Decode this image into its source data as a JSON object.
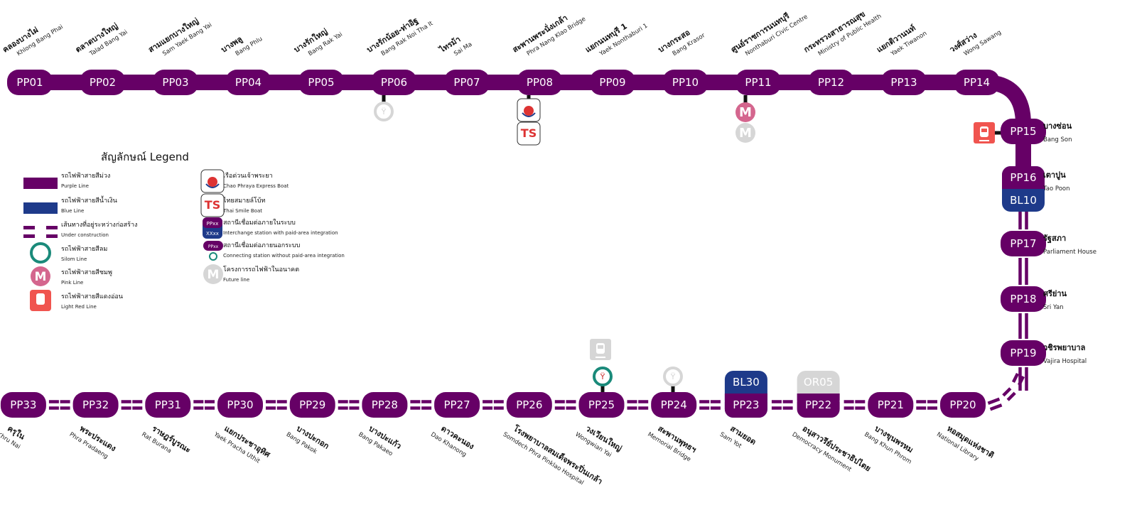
{
  "colors": {
    "purple": "#660066",
    "blue": "#1e3a8a",
    "pink": "#d4668e",
    "silom": "#1a8a7a",
    "light_red": "#f0544f",
    "future": "#d6d6d6",
    "link": "#111111"
  },
  "stations": [
    {
      "code": "PP01",
      "th": "คลองบางไผ่",
      "en": "Khlong Bang Phai"
    },
    {
      "code": "PP02",
      "th": "ตลาดบางใหญ่",
      "en": "Talad Bang Yai"
    },
    {
      "code": "PP03",
      "th": "สามแยกบางใหญ่",
      "en": "Sam Yaek Bang Yai"
    },
    {
      "code": "PP04",
      "th": "บางพลู",
      "en": "Bang Phlu"
    },
    {
      "code": "PP05",
      "th": "บางรักใหญ่",
      "en": "Bang Rak Yai"
    },
    {
      "code": "PP06",
      "th": "บางรักน้อย-ท่าอิฐ",
      "en": "Bang Rak Noi Tha It",
      "connections": [
        "silom-future"
      ]
    },
    {
      "code": "PP07",
      "th": "ไทรม้า",
      "en": "Sai Ma"
    },
    {
      "code": "PP08",
      "th": "สะพานพระนั่งเกล้า",
      "en": "Phra Nang Klao Bridge",
      "connections": [
        "chao-phraya-express-boat",
        "thai-smile-boat"
      ]
    },
    {
      "code": "PP09",
      "th": "แยกนนทบุรี 1",
      "en": "Yaek Nonthaburi 1"
    },
    {
      "code": "PP10",
      "th": "บางกระสอ",
      "en": "Bang Krasor"
    },
    {
      "code": "PP11",
      "th": "ศูนย์ราชการนนทบุรี",
      "en": "Nonthaburi Civic Centre",
      "connections": [
        "pink-line",
        "future-line"
      ]
    },
    {
      "code": "PP12",
      "th": "กระทรวงสาธารณสุข",
      "en": "Ministry of Public Health"
    },
    {
      "code": "PP13",
      "th": "แยกติวานนท์",
      "en": "Yaek Tiwanon"
    },
    {
      "code": "PP14",
      "th": "วงศ์สว่าง",
      "en": "Wong Sawang"
    },
    {
      "code": "PP15",
      "th": "บางซ่อน",
      "en": "Bang Son",
      "connections": [
        "light-red-line"
      ]
    },
    {
      "code": "PP16",
      "th": "เตาปูน",
      "en": "Tao Poon",
      "interchange": "BL10"
    },
    {
      "code": "PP17",
      "th": "รัฐสภา",
      "en": "Parliament House"
    },
    {
      "code": "PP18",
      "th": "ศรีย่าน",
      "en": "Sri Yan"
    },
    {
      "code": "PP19",
      "th": "วชิรพยาบาล",
      "en": "Vajira Hospital"
    },
    {
      "code": "PP20",
      "th": "หอสมุดแห่งชาติ",
      "en": "National Library"
    },
    {
      "code": "PP21",
      "th": "บางขุนพรหม",
      "en": "Bang Khun Phrom"
    },
    {
      "code": "PP22",
      "th": "อนุสาวรีย์ประชาธิปไตย",
      "en": "Democracy Monument",
      "interchange": "OR05"
    },
    {
      "code": "PP23",
      "th": "สามยอด",
      "en": "Sam Yot",
      "interchange": "BL30"
    },
    {
      "code": "PP24",
      "th": "สะพานพุทธฯ",
      "en": "Memorial Bridge",
      "connections": [
        "silom-future"
      ]
    },
    {
      "code": "PP25",
      "th": "วงเวียนใหญ่",
      "en": "Wongwian Yai",
      "connections": [
        "silom-line",
        "light-red-future"
      ]
    },
    {
      "code": "PP26",
      "th": "โรงพยาบาลสมเด็จพระปิ่นเกล้า",
      "en": "Somdech Phra Pinklao Hospital"
    },
    {
      "code": "PP27",
      "th": "ดาวคะนอง",
      "en": "Dao Khanong"
    },
    {
      "code": "PP28",
      "th": "บางปะแก้ว",
      "en": "Bang Pakaeo"
    },
    {
      "code": "PP29",
      "th": "บางปะกอก",
      "en": "Bang Pakok"
    },
    {
      "code": "PP30",
      "th": "แยกประชาอุทิศ",
      "en": "Yaek Pracha Uthit"
    },
    {
      "code": "PP31",
      "th": "ราษฎร์บูรณะ",
      "en": "Rat Burana"
    },
    {
      "code": "PP32",
      "th": "พระประแดง",
      "en": "Phra Pradaeng"
    },
    {
      "code": "PP33",
      "th": "ครุใน",
      "en": "Khru Nai"
    }
  ],
  "legend": {
    "title": "สัญลักษณ์ Legend",
    "items": [
      {
        "icon": "purple-line-swatch",
        "th": "รถไฟฟ้าสายสีม่วง",
        "en": "Purple Line"
      },
      {
        "icon": "blue-line-swatch",
        "th": "รถไฟฟ้าสายสีน้ำเงิน",
        "en": "Blue Line"
      },
      {
        "icon": "under-construction-swatch",
        "th": "เส้นทางที่อยู่ระหว่างก่อสร้าง",
        "en": "Under construction"
      },
      {
        "icon": "silom-line-icon",
        "th": "รถไฟฟ้าสายสีลม",
        "en": "Silom Line"
      },
      {
        "icon": "pink-line-icon",
        "th": "รถไฟฟ้าสายสีชมพู",
        "en": "Pink Line"
      },
      {
        "icon": "light-red-line-icon",
        "th": "รถไฟฟ้าสายสีแดงอ่อน",
        "en": "Light Red Line"
      },
      {
        "icon": "chao-phraya-boat-icon",
        "th": "เรือด่วนเจ้าพระยา",
        "en": "Chao Phraya Express Boat"
      },
      {
        "icon": "thai-smile-boat-icon",
        "th": "ไทยสมายล์โบ้ท",
        "en": "Thai Smile Boat"
      },
      {
        "icon": "interchange-icon",
        "th": "สถานีเชื่อมต่อภายในระบบ",
        "en": "Interchange station with paid-area integration",
        "codes": [
          "PPxx",
          "XXxx"
        ]
      },
      {
        "icon": "connecting-icon",
        "th": "สถานีเชื่อมต่อภายนอกระบบ",
        "en": "Connecting station without paid-area integration",
        "codes": [
          "PPxx"
        ]
      },
      {
        "icon": "future-line-icon",
        "th": "โครงการรถไฟฟ้าในอนาคต",
        "en": "Future line"
      }
    ]
  }
}
